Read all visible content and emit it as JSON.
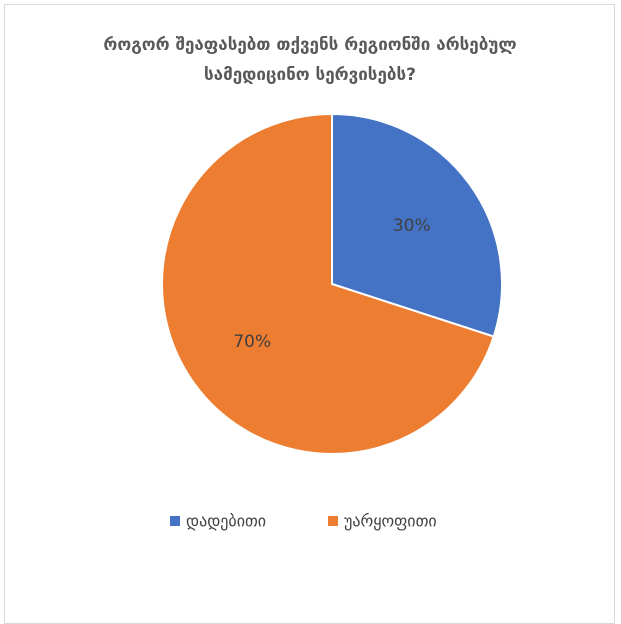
{
  "chart_data": {
    "type": "pie",
    "title": "როგორ შეაფასებთ თქვენს რეგიონში არსებულ სამედიცინო სერვისებს?",
    "categories": [
      "დადებითი",
      "უარყოფითი"
    ],
    "values": [
      30,
      70
    ],
    "value_labels": [
      "30%",
      "70%"
    ],
    "colors": [
      "#4472c4",
      "#ed7d31"
    ],
    "legend": "bottom"
  }
}
